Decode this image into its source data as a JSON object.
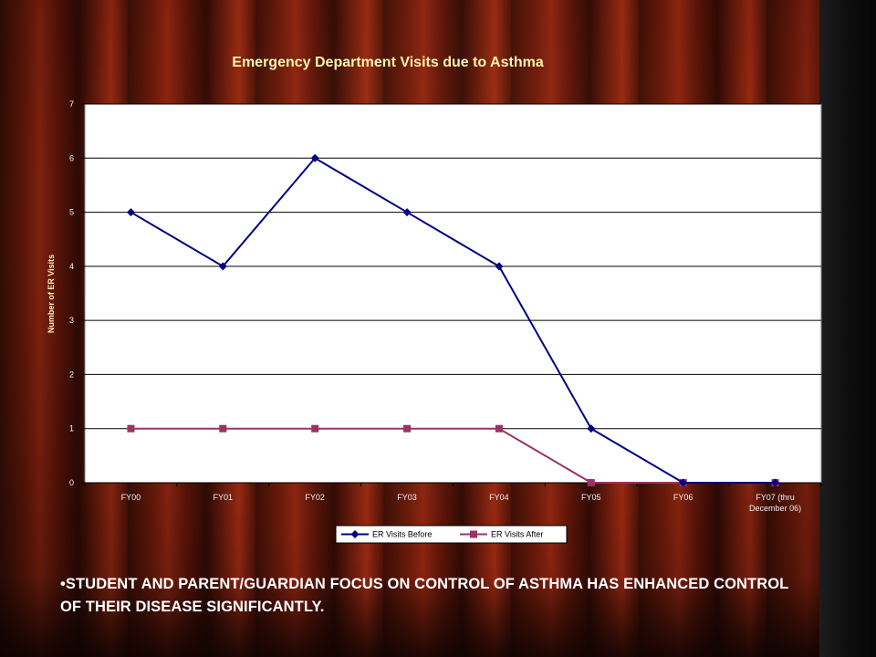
{
  "slide": {
    "caption_bullet": "•",
    "caption": "STUDENT AND PARENT/GUARDIAN FOCUS ON CONTROL OF ASTHMA  HAS ENHANCED  CONTROL OF THEIR DISEASE SIGNIFICANTLY.",
    "colors": {
      "curtain": "#6a1a0a",
      "title": "#fff3b0",
      "caption": "#ffffff"
    }
  },
  "chart_data": {
    "type": "line",
    "title": "Emergency Department Visits due to Asthma",
    "xlabel": "",
    "ylabel": "Number of ER Visits",
    "categories": [
      "FY00",
      "FY01",
      "FY02",
      "FY03",
      "FY04",
      "FY05",
      "FY06",
      "FY07 (thru December 06)"
    ],
    "category_lines": [
      [
        "FY00"
      ],
      [
        "FY01"
      ],
      [
        "FY02"
      ],
      [
        "FY03"
      ],
      [
        "FY04"
      ],
      [
        "FY05"
      ],
      [
        "FY06"
      ],
      [
        "FY07 (thru",
        "December 06)"
      ]
    ],
    "series": [
      {
        "name": "ER Visits Before",
        "values": [
          5,
          4,
          6,
          5,
          4,
          1,
          0,
          0
        ],
        "color": "#000080",
        "marker": "diamond"
      },
      {
        "name": "ER Visits After",
        "values": [
          1,
          1,
          1,
          1,
          1,
          0,
          0,
          0
        ],
        "color": "#993366",
        "marker": "square"
      }
    ],
    "ylim": [
      0,
      7
    ],
    "yticks": [
      0,
      1,
      2,
      3,
      4,
      5,
      6,
      7
    ],
    "grid": true,
    "legend": "bottom-center",
    "plot_background": "#ffffff"
  }
}
